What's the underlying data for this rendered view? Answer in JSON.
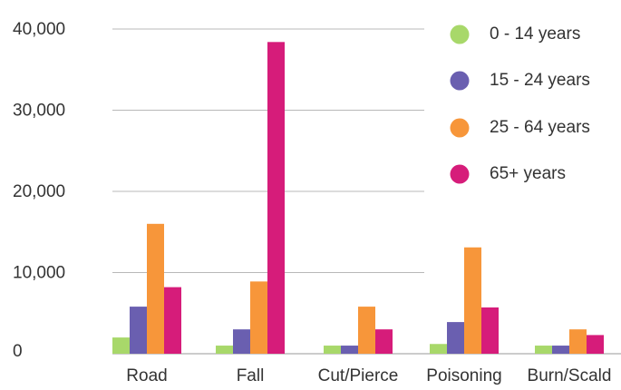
{
  "chart_data": {
    "type": "bar",
    "categories": [
      "Road",
      "Fall",
      "Cut/Pierce",
      "Poisoning",
      "Burn/Scald"
    ],
    "series": [
      {
        "name": "0 - 14 years",
        "color": "#a8d86a",
        "values": [
          2000,
          1000,
          1000,
          1200,
          1000
        ]
      },
      {
        "name": "15 - 24 years",
        "color": "#6a5fb0",
        "values": [
          5800,
          3000,
          1000,
          3900,
          1000
        ]
      },
      {
        "name": "25 - 64 years",
        "color": "#f7963a",
        "values": [
          16000,
          8900,
          5800,
          13100,
          3000
        ]
      },
      {
        "name": "65+ years",
        "color": "#d61c7a",
        "values": [
          8200,
          38400,
          3000,
          5700,
          2300
        ]
      }
    ],
    "ylim": [
      0,
      40000
    ],
    "yticks": [
      "0",
      "10,000",
      "20,000",
      "30,000",
      "40,000"
    ],
    "grid": true,
    "legend_position": "top-right",
    "title": "",
    "xlabel": "",
    "ylabel": ""
  }
}
